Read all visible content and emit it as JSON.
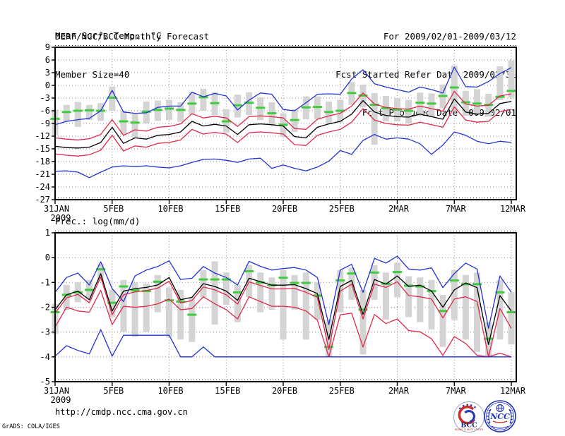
{
  "header": {
    "left_lines": [
      "DERF/NCC/BCC Monthly Forecast",
      "Member Size=40"
    ],
    "right_lines": [
      "For 2009/02/01-2009/03/12",
      "Fcst Started Refer Date 2009/01/31",
      "Fcst Produced Date 2009/02/01"
    ]
  },
  "footer": {
    "url": "http://cmdp.ncc.cma.gov.cn",
    "credit": "GrADS: COLA/IGES",
    "logos": [
      {
        "label": "BCC",
        "sub": "BEIJING CLIMATE CENTER"
      },
      {
        "label": "NCC"
      }
    ]
  },
  "chart_data": [
    {
      "name": "mean-surface-temperature",
      "type": "line",
      "title": "Mean Surf. Temp.: °C",
      "ylim": [
        -27,
        9
      ],
      "yticks": [
        9,
        6,
        3,
        0,
        -3,
        -6,
        -9,
        -12,
        -15,
        -18,
        -21,
        -24,
        -27
      ],
      "grid": true,
      "legend_position": "none",
      "xticks": {
        "positions": [
          0,
          5,
          10,
          15,
          20,
          25,
          30,
          35,
          40
        ],
        "labels": [
          "31JAN",
          "5FEB",
          "10FEB",
          "15FEB",
          "20FEB",
          "25FEB",
          "2MAR",
          "7MAR",
          "12MAR"
        ],
        "year_label": "2009"
      },
      "series": [
        {
          "name": "ensemble-max",
          "color": "#2232d2",
          "values": [
            -9.3,
            -8.5,
            -8.1,
            -7.8,
            -6.0,
            -1.2,
            -6.3,
            -6.6,
            -6.5,
            -5.2,
            -4.9,
            -4.9,
            -1.6,
            -2.7,
            -1.9,
            -2.5,
            -5.8,
            -3.5,
            -1.8,
            -2.1,
            -5.7,
            -6.0,
            -4.1,
            -2.1,
            -2.0,
            -2.1,
            1.5,
            3.7,
            0.4,
            -0.4,
            -1.0,
            -1.6,
            -0.4,
            -1.0,
            -1.8,
            4.3,
            -0.3,
            -0.4,
            0.9,
            2.8,
            4.2
          ]
        },
        {
          "name": "ensemble-upper",
          "color": "#e02848",
          "values": [
            -12.4,
            -12.7,
            -12.9,
            -12.6,
            -11.6,
            -8.1,
            -11.8,
            -10.5,
            -10.8,
            -9.9,
            -9.7,
            -9.1,
            -6.7,
            -7.7,
            -7.3,
            -7.7,
            -9.7,
            -7.4,
            -7.2,
            -7.4,
            -7.7,
            -10.2,
            -10.4,
            -8.0,
            -7.2,
            -6.6,
            -4.9,
            -1.8,
            -4.4,
            -5.2,
            -5.5,
            -5.6,
            -4.9,
            -5.5,
            -6.1,
            -1.4,
            -4.4,
            -4.9,
            -4.7,
            -2.5,
            -2.0
          ]
        },
        {
          "name": "ensemble-mean",
          "color": "#000000",
          "values": [
            -14.4,
            -14.7,
            -14.8,
            -14.6,
            -13.5,
            -9.9,
            -13.7,
            -12.4,
            -12.7,
            -11.8,
            -11.6,
            -11.0,
            -8.5,
            -9.6,
            -9.2,
            -9.6,
            -11.6,
            -9.3,
            -9.1,
            -9.3,
            -9.6,
            -12.1,
            -12.4,
            -9.9,
            -9.1,
            -8.5,
            -6.8,
            -3.6,
            -6.3,
            -7.1,
            -7.4,
            -7.5,
            -6.8,
            -7.4,
            -8.0,
            -3.2,
            -6.3,
            -6.8,
            -6.6,
            -4.3,
            -3.8
          ]
        },
        {
          "name": "ensemble-lower",
          "color": "#e02848",
          "values": [
            -16.2,
            -16.5,
            -16.7,
            -16.4,
            -15.3,
            -11.8,
            -15.5,
            -14.3,
            -14.6,
            -13.7,
            -13.5,
            -12.9,
            -10.4,
            -11.5,
            -11.1,
            -11.5,
            -13.5,
            -11.2,
            -11.0,
            -11.2,
            -11.5,
            -14.0,
            -14.2,
            -11.8,
            -11.0,
            -10.4,
            -8.7,
            -5.5,
            -8.2,
            -9.0,
            -9.3,
            -9.4,
            -8.7,
            -9.3,
            -9.9,
            -5.1,
            -8.2,
            -8.7,
            -8.5,
            -6.2,
            -5.7
          ]
        },
        {
          "name": "ensemble-min",
          "color": "#2232d2",
          "values": [
            -20.3,
            -20.2,
            -20.5,
            -21.8,
            -20.5,
            -19.3,
            -19.0,
            -19.2,
            -19.0,
            -19.3,
            -19.5,
            -19.0,
            -18.2,
            -17.5,
            -17.4,
            -17.7,
            -18.2,
            -17.4,
            -17.2,
            -19.6,
            -18.8,
            -19.6,
            -20.2,
            -19.3,
            -17.9,
            -15.4,
            -16.3,
            -13.0,
            -11.6,
            -12.7,
            -12.4,
            -12.7,
            -13.8,
            -16.3,
            -14.1,
            -11.0,
            -11.8,
            -13.2,
            -13.8,
            -13.2,
            -13.5
          ]
        }
      ],
      "obs": {
        "name": "observation-dash",
        "color": "#3ecb3e",
        "values": [
          -7.9,
          -6.3,
          -6.0,
          -5.9,
          -6.0,
          -2.9,
          -8.5,
          -8.8,
          -6.2,
          -5.8,
          -5.5,
          -5.8,
          -4.3,
          -2.8,
          -4.2,
          -8.5,
          -4.7,
          -4.1,
          -5.3,
          -6.6,
          -9.3,
          -8.2,
          -5.2,
          -5.1,
          -6.3,
          -6.0,
          -1.8,
          -2.4,
          -4.6,
          -5.4,
          -5.7,
          -6.0,
          -4.1,
          -4.3,
          -2.5,
          -0.5,
          -4.0,
          -4.3,
          -4.6,
          -2.7,
          -1.3
        ]
      },
      "bars": {
        "name": "ensemble-spread",
        "color": "#d4d4d4",
        "low": [
          -11.8,
          -8.6,
          -9.8,
          -8.2,
          -8.4,
          -6.0,
          -11.6,
          -12.4,
          -9.0,
          -8.4,
          -8.2,
          -8.6,
          -7.0,
          -6.0,
          -7.0,
          -11.2,
          -7.6,
          -7.0,
          -8.2,
          -9.4,
          -12.2,
          -11.0,
          -8.0,
          -8.0,
          -9.2,
          -8.8,
          -4.6,
          -5.2,
          -14.0,
          -8.5,
          -8.5,
          -9.0,
          -7.3,
          -7.5,
          -5.4,
          -6.1,
          -7.2,
          -6.8,
          -7.4,
          -3.5,
          -2.9
        ],
        "high": [
          -5.7,
          -4.6,
          -3.9,
          -4.6,
          -4.2,
          -0.3,
          -6.0,
          -6.8,
          -3.8,
          -3.6,
          -3.4,
          -4.0,
          -1.6,
          -0.8,
          -1.6,
          -5.6,
          -2.2,
          -1.6,
          -2.8,
          -4.0,
          -6.6,
          -5.6,
          -2.6,
          -2.6,
          -3.8,
          -3.4,
          0.8,
          0.2,
          -1.8,
          -2.5,
          -3.0,
          -3.4,
          -1.7,
          -1.9,
          0.2,
          4.7,
          -1.3,
          -0.9,
          -2.0,
          4.5,
          5.9
        ]
      }
    },
    {
      "name": "precipitation",
      "type": "line",
      "title": "Prec.: log(mm/d)",
      "ylim": [
        -5,
        1
      ],
      "yticks": [
        1,
        0,
        -1,
        -2,
        -3,
        -4,
        -5
      ],
      "grid": true,
      "legend_position": "none",
      "xticks": {
        "positions": [
          0,
          5,
          10,
          15,
          20,
          25,
          30,
          35,
          40
        ],
        "labels": [
          "31JAN",
          "5FEB",
          "10FEB",
          "15FEB",
          "20FEB",
          "25FEB",
          "2MAR",
          "7MAR",
          "12MAR"
        ],
        "year_label": "2009"
      },
      "series": [
        {
          "name": "ensemble-max",
          "color": "#2232d2",
          "values": [
            -1.4,
            -0.8,
            -0.62,
            -1.1,
            -0.17,
            -1.25,
            -1.77,
            -0.74,
            -0.5,
            -0.36,
            -0.13,
            -0.88,
            -0.83,
            -0.36,
            -0.62,
            -0.8,
            -1.1,
            -0.15,
            -0.35,
            -0.5,
            -0.44,
            -0.4,
            -0.5,
            -0.8,
            -2.7,
            -0.5,
            -0.27,
            -1.4,
            -0.03,
            -0.22,
            0.06,
            -0.46,
            -0.5,
            -0.41,
            -1.21,
            -0.64,
            -0.22,
            -0.46,
            -2.85,
            -0.74,
            -1.4
          ]
        },
        {
          "name": "ensemble-upper",
          "color": "#e02848",
          "values": [
            -2.24,
            -1.62,
            -1.48,
            -1.82,
            -0.78,
            -2.3,
            -1.5,
            -1.38,
            -1.33,
            -1.23,
            -0.95,
            -1.83,
            -1.73,
            -1.18,
            -1.3,
            -1.5,
            -1.87,
            -0.98,
            -1.12,
            -1.26,
            -1.26,
            -1.24,
            -1.4,
            -1.6,
            -3.7,
            -1.35,
            -1.07,
            -2.47,
            -1.07,
            -1.2,
            -0.97,
            -1.53,
            -1.58,
            -1.67,
            -2.43,
            -1.67,
            -1.58,
            -1.77,
            -4.0,
            -2.05,
            -2.85
          ]
        },
        {
          "name": "ensemble-mean",
          "color": "#000000",
          "values": [
            -2.1,
            -1.5,
            -1.35,
            -1.7,
            -0.65,
            -2.15,
            -1.35,
            -1.25,
            -1.2,
            -1.1,
            -0.8,
            -1.7,
            -1.6,
            -1.05,
            -1.16,
            -1.35,
            -1.72,
            -0.83,
            -0.97,
            -1.11,
            -1.11,
            -1.09,
            -1.25,
            -1.45,
            -3.3,
            -1.16,
            -0.92,
            -2.29,
            -0.88,
            -1.07,
            -0.74,
            -1.16,
            -1.11,
            -1.35,
            -2.0,
            -1.3,
            -1.02,
            -1.21,
            -3.5,
            -1.53,
            -2.15
          ]
        },
        {
          "name": "ensemble-lower",
          "color": "#e02848",
          "values": [
            -2.8,
            -2.0,
            -2.15,
            -2.2,
            -1.32,
            -2.7,
            -1.96,
            -2.0,
            -1.96,
            -1.86,
            -1.67,
            -2.1,
            -2.05,
            -1.58,
            -1.86,
            -2.1,
            -2.47,
            -1.58,
            -1.77,
            -1.96,
            -1.96,
            -2.0,
            -2.15,
            -2.52,
            -4.0,
            -2.3,
            -2.24,
            -3.6,
            -2.29,
            -2.66,
            -2.47,
            -2.94,
            -2.99,
            -3.27,
            -3.94,
            -3.18,
            -3.46,
            -3.94,
            -4.0,
            -3.85,
            -4.0
          ]
        },
        {
          "name": "ensemble-min",
          "color": "#2232d2",
          "values": [
            -3.97,
            -3.55,
            -3.74,
            -3.88,
            -2.9,
            -3.97,
            -3.13,
            -3.13,
            -3.13,
            -3.13,
            -3.13,
            -4.0,
            -4.0,
            -3.6,
            -4.0,
            -4.0,
            -4.0,
            -4.0,
            -4.0,
            -4.0,
            -4.0,
            -4.0,
            -4.0,
            -4.0,
            -4.0,
            -4.0,
            -4.0,
            -4.0,
            -4.0,
            -4.0,
            -4.0,
            -4.0,
            -4.0,
            -4.0,
            -4.0,
            -4.0,
            -4.0,
            -4.0,
            -4.0,
            -4.0,
            -4.0
          ]
        }
      ],
      "obs": {
        "name": "observation-dash",
        "color": "#3ecb3e",
        "values": [
          -2.2,
          -1.5,
          -1.4,
          -1.3,
          -0.47,
          -1.82,
          -1.16,
          -1.32,
          -1.35,
          -0.97,
          -1.72,
          -1.77,
          -2.3,
          -0.88,
          -0.88,
          -0.88,
          -1.4,
          -0.55,
          -1.0,
          -1.11,
          -0.81,
          -1.02,
          -1.02,
          -1.53,
          -3.6,
          -0.92,
          -0.64,
          -2.1,
          -0.6,
          -1.05,
          -0.58,
          -1.13,
          -1.16,
          -1.35,
          -2.15,
          -0.92,
          -1.07,
          -1.07,
          -3.27,
          -1.4,
          -2.2
        ]
      },
      "bars": {
        "name": "ensemble-spread",
        "color": "#d4d4d4",
        "low": [
          -3.08,
          -2.1,
          -1.8,
          -1.7,
          -0.95,
          -2.4,
          -3.0,
          -3.2,
          -3.0,
          -2.2,
          -3.2,
          -3.3,
          -3.4,
          -1.6,
          -2.7,
          -1.9,
          -2.6,
          -1.6,
          -2.2,
          -2.1,
          -3.3,
          -2.1,
          -3.3,
          -2.5,
          -4.0,
          -2.2,
          -1.7,
          -3.9,
          -1.7,
          -2.5,
          -1.6,
          -2.4,
          -2.6,
          -2.9,
          -3.6,
          -2.5,
          -3.3,
          -3.8,
          -4.0,
          -3.3,
          -3.5
        ],
        "high": [
          -1.86,
          -1.1,
          -1.0,
          -0.9,
          -0.25,
          -1.3,
          -0.9,
          -1.0,
          -1.05,
          -0.7,
          -1.2,
          -1.3,
          -1.6,
          -0.5,
          -0.15,
          -0.6,
          -1.1,
          -0.3,
          -0.6,
          -0.8,
          -0.5,
          -0.7,
          -0.6,
          -1.0,
          -2.5,
          -0.5,
          -0.4,
          -1.3,
          -0.3,
          -0.6,
          -0.2,
          -0.75,
          -0.8,
          -0.9,
          -1.5,
          -0.5,
          -0.7,
          -0.6,
          -2.6,
          -0.9,
          -1.4
        ]
      }
    }
  ]
}
